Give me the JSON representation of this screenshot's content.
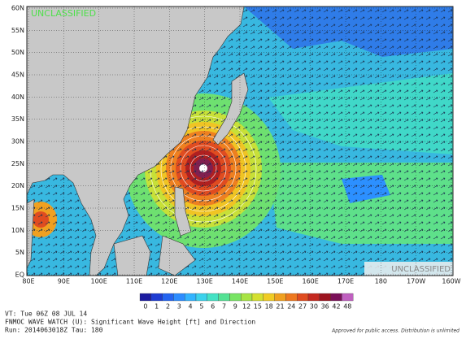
{
  "map": {
    "classification_top": "UNCLASSIFIED",
    "classification_bottom": "UNCLASSIFIED",
    "latitude_labels": [
      "60N",
      "55N",
      "50N",
      "45N",
      "40N",
      "35N",
      "30N",
      "25N",
      "20N",
      "15N",
      "10N",
      "5N",
      "EQ"
    ],
    "longitude_labels": [
      "80E",
      "90E",
      "100E",
      "110E",
      "120E",
      "130E",
      "140E",
      "150E",
      "160E",
      "170E",
      "180",
      "170W",
      "160W"
    ]
  },
  "colorbar": {
    "labels": [
      "0",
      "1",
      "2",
      "3",
      "4",
      "5",
      "6",
      "7",
      "9",
      "12",
      "15",
      "18",
      "21",
      "24",
      "27",
      "30",
      "36",
      "42",
      "48"
    ],
    "colors": [
      "#1c1ca0",
      "#1e3cd2",
      "#2464f0",
      "#2c8cff",
      "#32b4ff",
      "#3cd2ec",
      "#44e2c4",
      "#54e294",
      "#78e464",
      "#a8e444",
      "#d4e030",
      "#f0cc24",
      "#f0a020",
      "#ee7820",
      "#e04c20",
      "#c42820",
      "#9c1420",
      "#7a1058",
      "#c060c0"
    ]
  },
  "footer": {
    "lines": [
      "VT: Tue 06Z 08 JUL 14",
      "FNMOC WAVE WATCH (U): Significant Wave Height [ft] and Direction",
      "Run: 2014063018Z Tau: 180"
    ],
    "approval": "Approved for public access. Distribution is unlimited"
  }
}
